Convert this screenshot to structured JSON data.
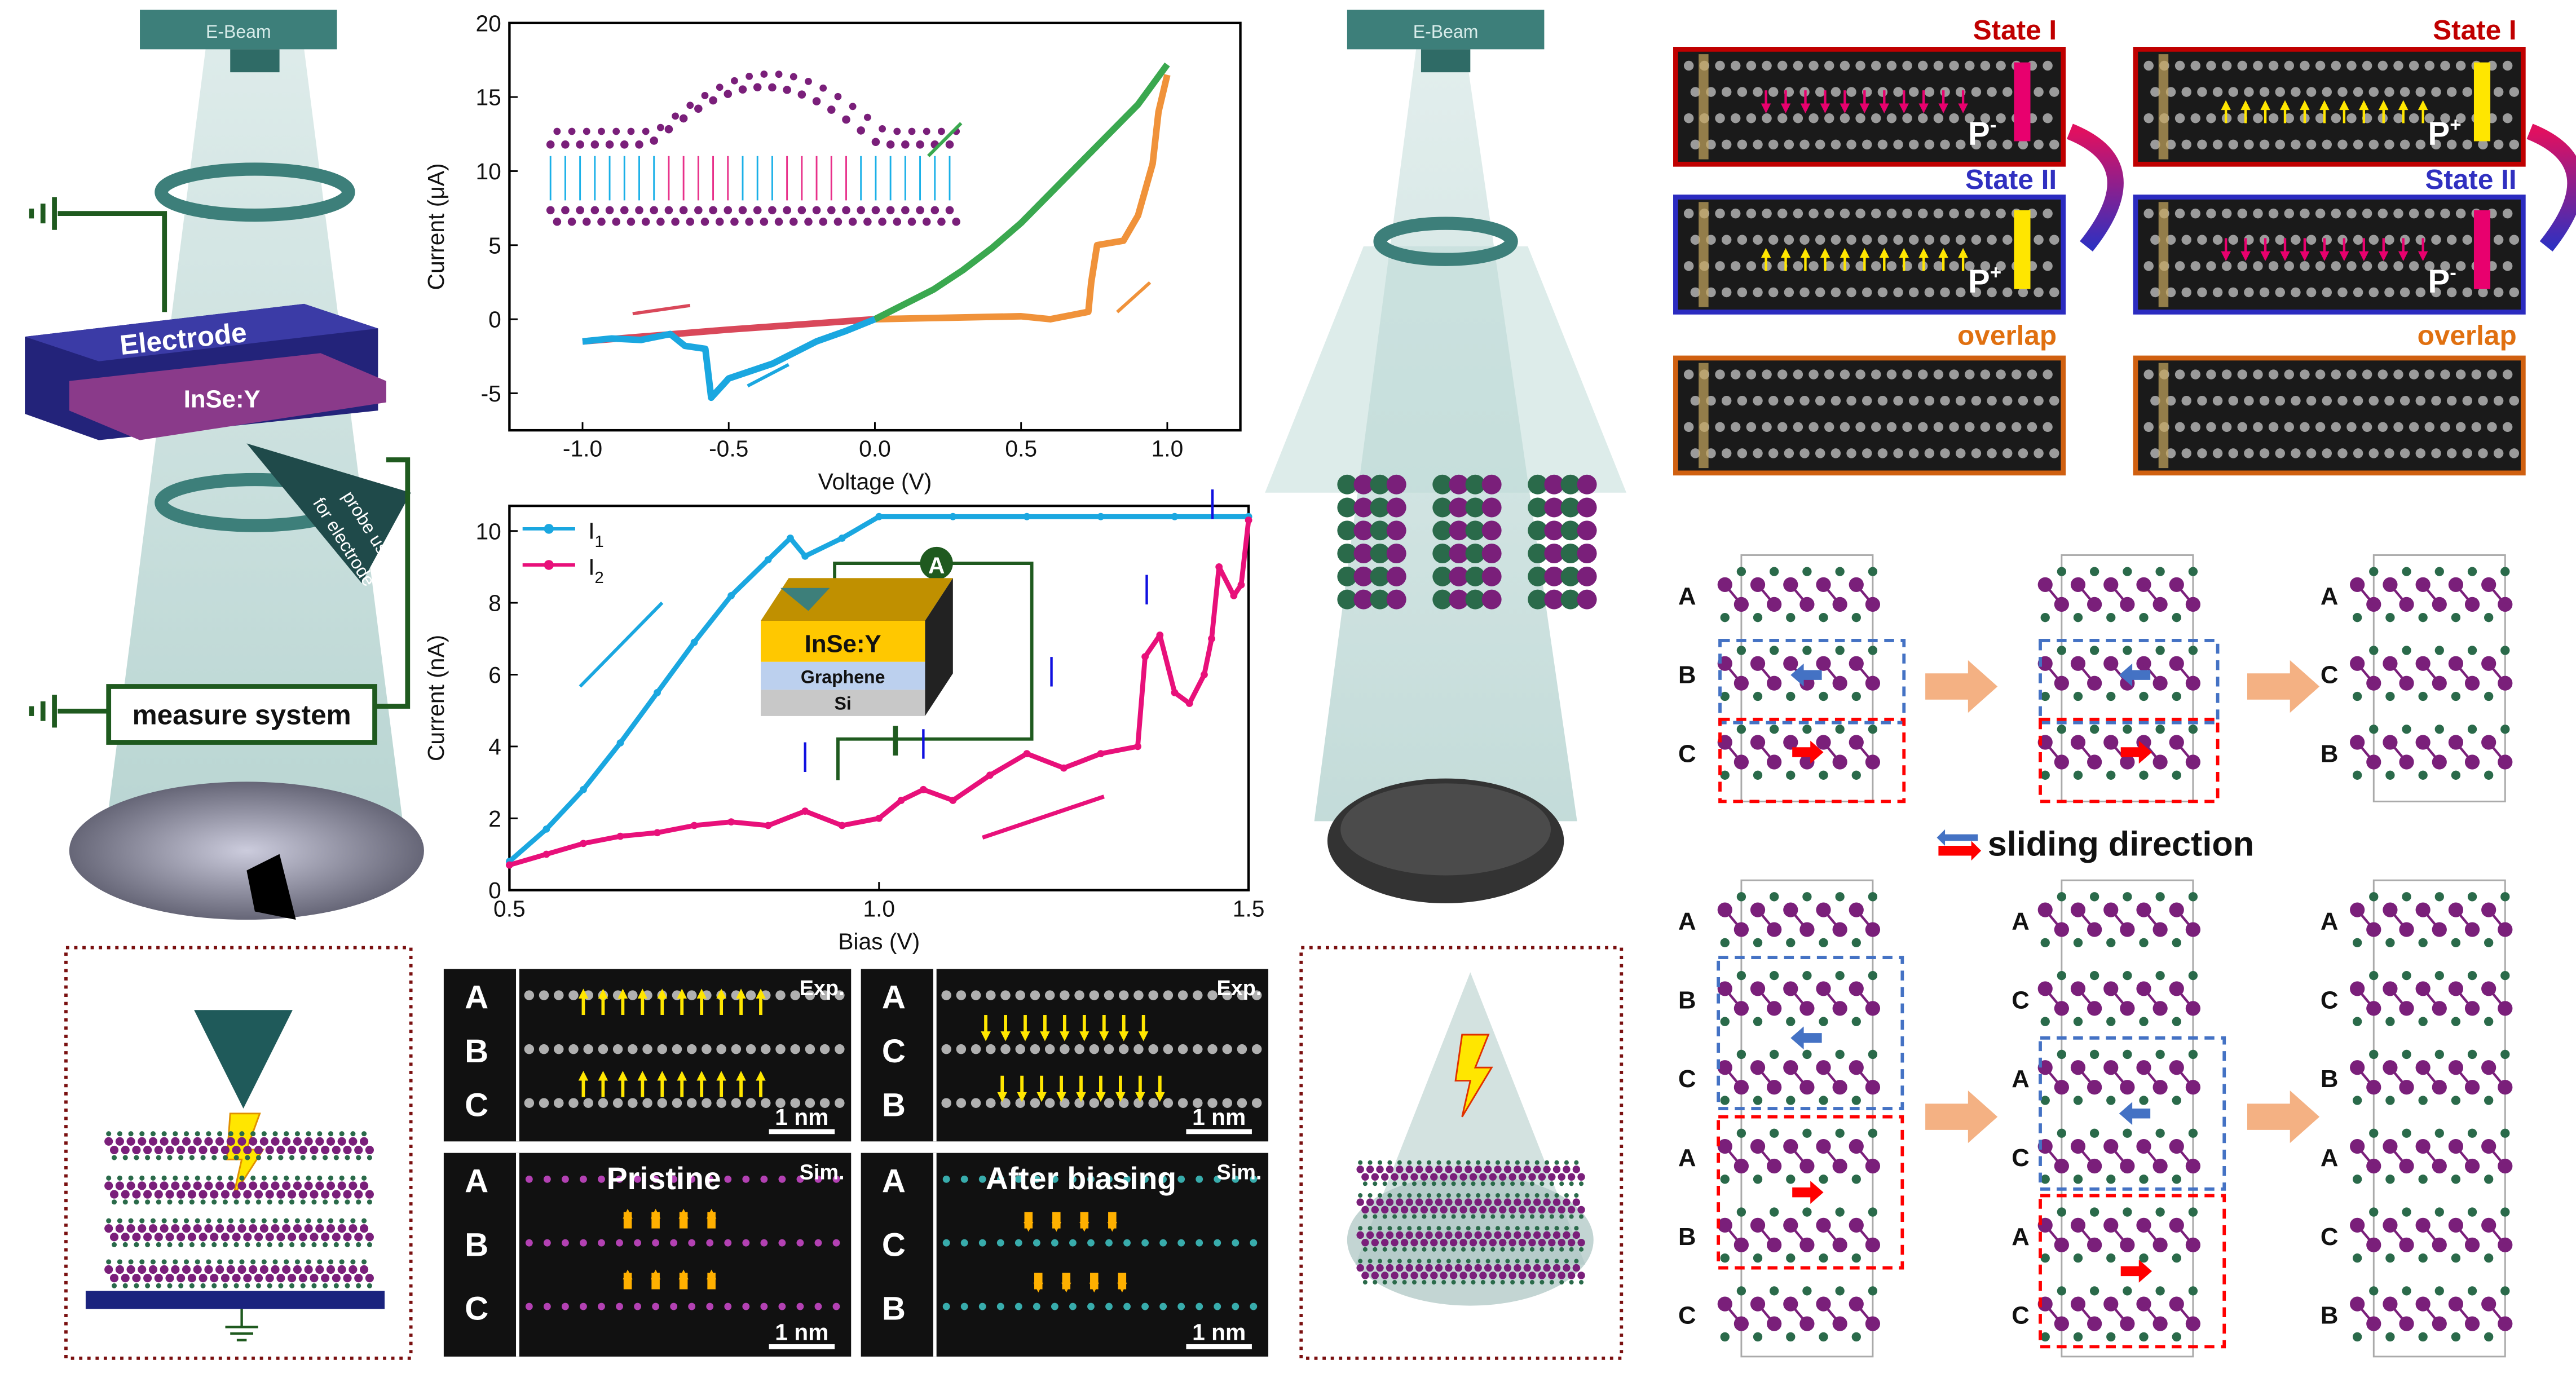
{
  "colors": {
    "purple": "#7a1f7a",
    "green": "#2a6a4a",
    "teal": "#3d7f7a",
    "red_box": "#c00000",
    "blue_box": "#2b2bc0",
    "orange_box": "#d06010",
    "arrow_peach": "#f4b183",
    "yellow": "#ffe600",
    "pink": "#e8006e"
  },
  "left_panel": {
    "ebeam": "E-Beam",
    "electrode": "Electrode",
    "sample": "InSe:Y",
    "probe": "probe used",
    "probe2": "for electrode",
    "measure": "measure system"
  },
  "center_panel": {
    "ebeam": "E-Beam"
  },
  "stem_exp": [
    {
      "tag": "Exp.",
      "rows": [
        "A",
        "B",
        "C"
      ],
      "scale": "1 nm"
    },
    {
      "tag": "Exp.",
      "rows": [
        "A",
        "C",
        "B"
      ],
      "scale": "1 nm"
    }
  ],
  "stem_sim": [
    {
      "tag": "Sim.",
      "title": "Pristine",
      "rows": [
        "A",
        "B",
        "C"
      ],
      "scale": "1 nm"
    },
    {
      "tag": "Sim.",
      "title": "After biasing",
      "rows": [
        "A",
        "C",
        "B"
      ],
      "scale": "1 nm"
    }
  ],
  "states": {
    "left": {
      "s1": "State I",
      "p1": "P",
      "p1sup": "-",
      "s2": "State II",
      "p2": "P",
      "p2sup": "+",
      "overlap": "overlap"
    },
    "right": {
      "s1": "State I",
      "p1": "P",
      "p1sup": "+",
      "s2": "State II",
      "p2": "P",
      "p2sup": "-",
      "overlap": "overlap"
    }
  },
  "structures": {
    "top": [
      [
        "A",
        "B",
        "C"
      ],
      [],
      [
        "A",
        "C",
        "B"
      ]
    ],
    "bottom": [
      [
        "A",
        "B",
        "C",
        "A",
        "B",
        "C"
      ],
      [
        "A",
        "C",
        "A",
        "C",
        "A",
        "C"
      ],
      [
        "A",
        "C",
        "B",
        "A",
        "C",
        "B"
      ]
    ],
    "legend": "sliding direction"
  },
  "chart_data": [
    {
      "type": "line",
      "title": "",
      "xlabel": "Voltage (V)",
      "ylabel": "Current (μA)",
      "xlim": [
        -1.25,
        1.25
      ],
      "ylim": [
        -7.5,
        20
      ],
      "xticks": [
        "-1.0",
        "-0.5",
        "0.0",
        "0.5",
        "1.0"
      ],
      "yticks": [
        "-5",
        "0",
        "5",
        "10",
        "15",
        "20"
      ],
      "grid": false,
      "series": [
        {
          "color": "#d9485a",
          "x": [
            -1.0,
            -0.75,
            -0.5,
            -0.25,
            0.0
          ],
          "y": [
            -1.5,
            -1.1,
            -0.7,
            -0.35,
            0.0
          ]
        },
        {
          "color": "#f0923a",
          "x": [
            0.0,
            0.25,
            0.5,
            0.6,
            0.73,
            0.74,
            0.76,
            0.85,
            0.9,
            0.95,
            0.97,
            1.0
          ],
          "y": [
            0.0,
            0.1,
            0.2,
            0.0,
            0.5,
            2.5,
            5.0,
            5.3,
            7.0,
            10.5,
            14.0,
            16.5
          ]
        },
        {
          "color": "#3aa84f",
          "x": [
            0.0,
            0.1,
            0.2,
            0.3,
            0.4,
            0.5,
            0.6,
            0.7,
            0.8,
            0.9,
            1.0
          ],
          "y": [
            0.0,
            1.0,
            2.0,
            3.3,
            4.8,
            6.5,
            8.5,
            10.5,
            12.5,
            14.5,
            17.2
          ]
        },
        {
          "color": "#1aa7e0",
          "x": [
            0.0,
            -0.1,
            -0.2,
            -0.35,
            -0.5,
            -0.56,
            -0.58,
            -0.65,
            -0.7,
            -0.8,
            -0.9,
            -1.0
          ],
          "y": [
            0.0,
            -0.8,
            -1.5,
            -3.0,
            -4.0,
            -5.3,
            -2.0,
            -1.8,
            -1.0,
            -1.4,
            -1.3,
            -1.5
          ]
        }
      ]
    },
    {
      "type": "line",
      "title": "",
      "xlabel": "Bias (V)",
      "ylabel": "Current (nA)",
      "xlim": [
        0.5,
        1.5
      ],
      "ylim": [
        0,
        10.7
      ],
      "xticks": [
        "0.5",
        "1.0",
        "1.5"
      ],
      "yticks": [
        "0",
        "2",
        "4",
        "6",
        "8",
        "10"
      ],
      "grid": false,
      "legend": "top-left",
      "inset": {
        "layers": [
          "InSe:Y",
          "Graphene",
          "Si"
        ],
        "meter": "A"
      },
      "series": [
        {
          "name": "I",
          "sub": "1",
          "color": "#1aa7e0",
          "x": [
            0.5,
            0.55,
            0.6,
            0.65,
            0.7,
            0.75,
            0.8,
            0.85,
            0.88,
            0.9,
            0.95,
            1.0,
            1.1,
            1.2,
            1.3,
            1.4,
            1.5
          ],
          "y": [
            0.8,
            1.7,
            2.8,
            4.1,
            5.5,
            6.9,
            8.2,
            9.2,
            9.8,
            9.3,
            9.8,
            10.4,
            10.4,
            10.4,
            10.4,
            10.4,
            10.4
          ]
        },
        {
          "name": "I",
          "sub": "2",
          "color": "#e8107a",
          "x": [
            0.5,
            0.55,
            0.6,
            0.65,
            0.7,
            0.75,
            0.8,
            0.85,
            0.9,
            0.95,
            1.0,
            1.03,
            1.06,
            1.1,
            1.15,
            1.2,
            1.25,
            1.3,
            1.35,
            1.36,
            1.38,
            1.4,
            1.42,
            1.44,
            1.45,
            1.46,
            1.48,
            1.49,
            1.5
          ],
          "y": [
            0.7,
            1.0,
            1.3,
            1.5,
            1.6,
            1.8,
            1.9,
            1.8,
            2.2,
            1.8,
            2.0,
            2.5,
            2.8,
            2.5,
            3.2,
            3.8,
            3.4,
            3.8,
            4.0,
            6.5,
            7.1,
            5.5,
            5.2,
            6.0,
            7.0,
            9.0,
            8.2,
            8.5,
            10.3
          ]
        }
      ]
    }
  ]
}
